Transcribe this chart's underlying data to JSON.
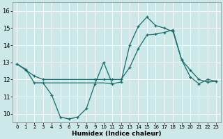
{
  "xlabel": "Humidex (Indice chaleur)",
  "xlim": [
    -0.5,
    23.5
  ],
  "ylim": [
    9.5,
    16.5
  ],
  "yticks": [
    10,
    11,
    12,
    13,
    14,
    15,
    16
  ],
  "xticks": [
    0,
    1,
    2,
    3,
    4,
    5,
    6,
    7,
    8,
    9,
    10,
    11,
    12,
    13,
    14,
    15,
    16,
    17,
    18,
    19,
    20,
    21,
    22,
    23
  ],
  "background_color": "#cce8e8",
  "line_color": "#1a6b6b",
  "grid_color": "#ffffff",
  "line1_x": [
    0,
    1,
    2,
    3,
    4,
    5,
    6,
    7,
    8,
    9,
    10,
    11,
    12,
    13,
    14,
    15,
    16,
    17,
    18,
    19,
    20,
    21,
    22,
    23
  ],
  "line1_y": [
    12.9,
    12.6,
    11.8,
    11.8,
    11.1,
    9.8,
    9.7,
    9.8,
    10.3,
    11.75,
    13.0,
    11.75,
    11.85,
    14.0,
    15.1,
    15.65,
    15.15,
    15.0,
    14.8,
    13.15,
    12.15,
    11.75,
    12.0,
    11.9
  ],
  "line2_x": [
    0,
    1,
    2,
    3,
    9,
    10,
    11,
    12,
    13,
    14,
    15,
    16,
    17,
    18,
    19,
    20,
    21,
    22,
    23
  ],
  "line2_y": [
    12.9,
    12.55,
    12.2,
    12.0,
    12.0,
    12.0,
    12.0,
    12.0,
    12.7,
    13.8,
    14.6,
    14.65,
    14.75,
    14.9,
    13.15,
    12.55,
    12.0,
    11.85,
    11.9
  ],
  "line3_x": [
    2,
    3,
    4,
    5,
    6,
    7,
    8,
    9,
    10,
    11
  ],
  "line3_y": [
    11.8,
    11.8,
    11.8,
    11.8,
    11.8,
    11.8,
    11.8,
    11.8,
    11.8,
    11.75
  ]
}
